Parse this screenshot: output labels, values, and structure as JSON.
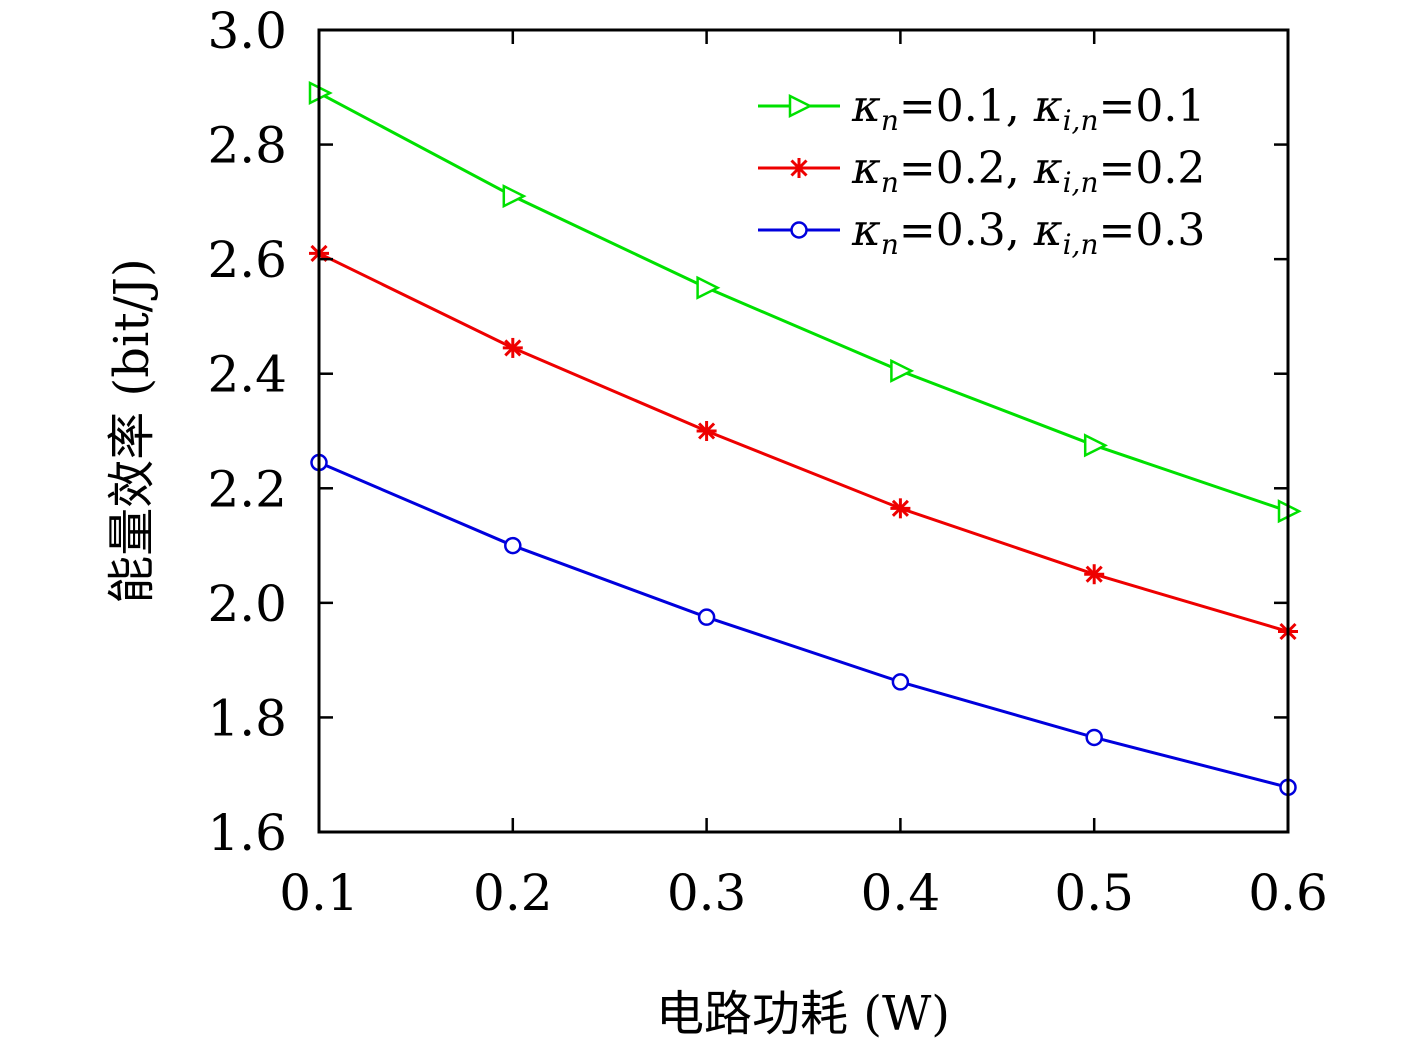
{
  "chart_data": {
    "type": "line",
    "xlabel": "电路功耗 (W)",
    "ylabel": "能量效率 (bit/J)",
    "xlim": [
      0.1,
      0.6
    ],
    "ylim": [
      1.6,
      3.0
    ],
    "x": [
      0.1,
      0.2,
      0.3,
      0.4,
      0.5,
      0.6
    ],
    "x_ticks": [
      "0.1",
      "0.2",
      "0.3",
      "0.4",
      "0.5",
      "0.6"
    ],
    "y_ticks": [
      "1.6",
      "1.8",
      "2.0",
      "2.2",
      "2.4",
      "2.6",
      "2.8",
      "3.0"
    ],
    "grid": false,
    "legend_position": "top-right",
    "series": [
      {
        "kappa_n": "0.1",
        "kappa_in": "0.1",
        "color": "#00e000",
        "marker": "triangle-right",
        "values": [
          2.89,
          2.71,
          2.55,
          2.405,
          2.275,
          2.16
        ]
      },
      {
        "kappa_n": "0.2",
        "kappa_in": "0.2",
        "color": "#ee0000",
        "marker": "asterisk",
        "values": [
          2.61,
          2.445,
          2.3,
          2.165,
          2.05,
          1.95
        ]
      },
      {
        "kappa_n": "0.3",
        "kappa_in": "0.3",
        "color": "#0000dd",
        "marker": "circle",
        "values": [
          2.245,
          2.1,
          1.975,
          1.862,
          1.765,
          1.678
        ]
      }
    ]
  }
}
